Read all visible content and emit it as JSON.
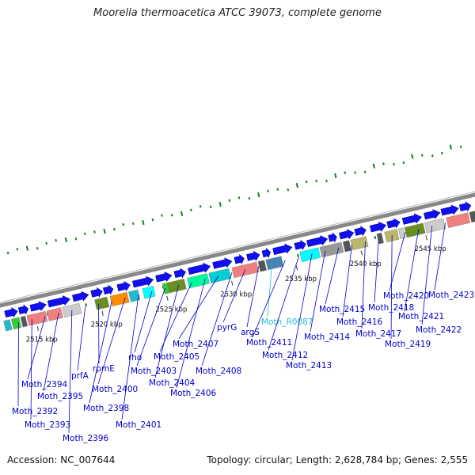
{
  "title": "Moorella thermoacetica ATCC 39073, complete genome",
  "footer": {
    "accession": "Accession: NC_007644",
    "topology": "Topology: circular; Length: 2,628,784 bp; Genes: 2,555"
  },
  "colors": {
    "backbone": "#888888",
    "forward_gene": "#1010ee",
    "gene_label": "#0000cc",
    "rna_label": "#22bbdd",
    "gc_tick": "#1f7a1f",
    "scale_text": "#111111"
  },
  "scale_labels": [
    "2515 kbp",
    "2520 kbp",
    "2525 kbp",
    "2530 kbp",
    "2535 kbp",
    "2540 kbp",
    "2545 kbp"
  ],
  "gene_labels": [
    {
      "text": "Moth_2392",
      "kind": "cds"
    },
    {
      "text": "Moth_2393",
      "kind": "cds"
    },
    {
      "text": "Moth_2394",
      "kind": "cds"
    },
    {
      "text": "Moth_2395",
      "kind": "cds"
    },
    {
      "text": "Moth_2396",
      "kind": "cds"
    },
    {
      "text": "prfA",
      "kind": "cds"
    },
    {
      "text": "rpmE",
      "kind": "cds"
    },
    {
      "text": "Moth_2398",
      "kind": "cds"
    },
    {
      "text": "Moth_2400",
      "kind": "cds"
    },
    {
      "text": "Moth_2401",
      "kind": "cds"
    },
    {
      "text": "rho",
      "kind": "cds"
    },
    {
      "text": "Moth_2403",
      "kind": "cds"
    },
    {
      "text": "Moth_2404",
      "kind": "cds"
    },
    {
      "text": "Moth_2405",
      "kind": "cds"
    },
    {
      "text": "Moth_2406",
      "kind": "cds"
    },
    {
      "text": "Moth_2407",
      "kind": "cds"
    },
    {
      "text": "Moth_2408",
      "kind": "cds"
    },
    {
      "text": "pyrG",
      "kind": "cds"
    },
    {
      "text": "argS",
      "kind": "cds"
    },
    {
      "text": "Moth_R0087",
      "kind": "rna"
    },
    {
      "text": "Moth_2411",
      "kind": "cds"
    },
    {
      "text": "Moth_2412",
      "kind": "cds"
    },
    {
      "text": "Moth_2413",
      "kind": "cds"
    },
    {
      "text": "Moth_2414",
      "kind": "cds"
    },
    {
      "text": "Moth_2415",
      "kind": "cds"
    },
    {
      "text": "Moth_2416",
      "kind": "cds"
    },
    {
      "text": "Moth_2417",
      "kind": "cds"
    },
    {
      "text": "Moth_2418",
      "kind": "cds"
    },
    {
      "text": "Moth_2419",
      "kind": "cds"
    },
    {
      "text": "Moth_2420",
      "kind": "cds"
    },
    {
      "text": "Moth_2421",
      "kind": "cds"
    },
    {
      "text": "Moth_2422",
      "kind": "cds"
    },
    {
      "text": "Moth_2423",
      "kind": "cds"
    }
  ],
  "cog_colors": [
    "#cccccc",
    "#f08080",
    "#33cc33",
    "#22bbcc",
    "#555555",
    "#6b8e23",
    "#ff8c00",
    "#00ced1",
    "#00ffff",
    "#40e0d0",
    "#00fa9a",
    "#4682b4",
    "#bdb76b",
    "#999999",
    "#9acd32"
  ]
}
